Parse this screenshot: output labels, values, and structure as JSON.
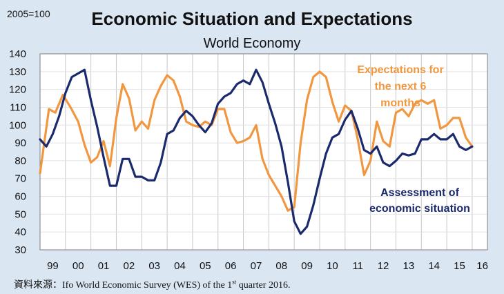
{
  "page": {
    "base_note": "2005=100",
    "source_prefix": "資料來源：",
    "source_text": "Ifo World Economic Survey (WES) of the 1",
    "source_sup": "st",
    "source_suffix": " quarter 2016."
  },
  "chart_data": {
    "type": "line",
    "title": "Economic Situation and Expectations",
    "subtitle": "World Economy",
    "xlabel": "",
    "ylabel": "",
    "ylim": [
      30,
      140
    ],
    "yticks": [
      30,
      40,
      50,
      60,
      70,
      80,
      90,
      100,
      110,
      120,
      130,
      140
    ],
    "xlim": [
      1998.5,
      2016.1
    ],
    "x_tick_labels": [
      {
        "label": "99",
        "x": 1999.0
      },
      {
        "label": "00",
        "x": 2000.0
      },
      {
        "label": "01",
        "x": 2001.0
      },
      {
        "label": "02",
        "x": 2002.0
      },
      {
        "label": "03",
        "x": 2003.0
      },
      {
        "label": "04",
        "x": 2004.0
      },
      {
        "label": "05",
        "x": 2005.0
      },
      {
        "label": "06",
        "x": 2006.0
      },
      {
        "label": "07",
        "x": 2007.0
      },
      {
        "label": "08",
        "x": 2008.0
      },
      {
        "label": "09",
        "x": 2009.0
      },
      {
        "label": "10",
        "x": 2010.0
      },
      {
        "label": "11",
        "x": 2011.0
      },
      {
        "label": "12",
        "x": 2012.0
      },
      {
        "label": "13",
        "x": 2013.0
      },
      {
        "label": "14",
        "x": 2014.0
      },
      {
        "label": "15",
        "x": 2015.0
      },
      {
        "label": "16",
        "x": 2015.9
      }
    ],
    "vertical_gridlines": [
      1999.5,
      2000.5,
      2001.5,
      2002.5,
      2003.5,
      2004.5,
      2005.5,
      2006.5,
      2007.5,
      2008.5,
      2009.5,
      2010.5,
      2011.5,
      2012.5,
      2013.5,
      2014.5,
      2015.5
    ],
    "grid": true,
    "series": [
      {
        "name": "Expectations for the next 6 months",
        "label_lines": [
          "Expectations for",
          "the next 6",
          "months"
        ],
        "color": "#f0973f",
        "points": [
          [
            1998.5,
            73
          ],
          [
            1998.85,
            109
          ],
          [
            1999.1,
            107
          ],
          [
            1999.4,
            117
          ],
          [
            1999.7,
            110
          ],
          [
            2000.0,
            102
          ],
          [
            2000.25,
            89
          ],
          [
            2000.5,
            79
          ],
          [
            2000.75,
            82
          ],
          [
            2001.0,
            91
          ],
          [
            2001.25,
            77
          ],
          [
            2001.5,
            104
          ],
          [
            2001.75,
            123
          ],
          [
            2002.0,
            115
          ],
          [
            2002.25,
            97
          ],
          [
            2002.5,
            102
          ],
          [
            2002.75,
            98
          ],
          [
            2003.0,
            114
          ],
          [
            2003.25,
            122
          ],
          [
            2003.5,
            128
          ],
          [
            2003.75,
            125
          ],
          [
            2004.0,
            116
          ],
          [
            2004.25,
            102
          ],
          [
            2004.5,
            100
          ],
          [
            2004.75,
            99
          ],
          [
            2005.0,
            102
          ],
          [
            2005.25,
            100
          ],
          [
            2005.5,
            109
          ],
          [
            2005.75,
            109
          ],
          [
            2006.0,
            96
          ],
          [
            2006.25,
            90
          ],
          [
            2006.5,
            91
          ],
          [
            2006.75,
            93
          ],
          [
            2007.0,
            100
          ],
          [
            2007.25,
            81
          ],
          [
            2007.5,
            72
          ],
          [
            2007.75,
            66
          ],
          [
            2008.0,
            60
          ],
          [
            2008.25,
            52
          ],
          [
            2008.5,
            54
          ],
          [
            2008.75,
            90
          ],
          [
            2009.0,
            114
          ],
          [
            2009.25,
            127
          ],
          [
            2009.5,
            130
          ],
          [
            2009.75,
            127
          ],
          [
            2010.0,
            113
          ],
          [
            2010.25,
            102
          ],
          [
            2010.5,
            111
          ],
          [
            2010.75,
            108
          ],
          [
            2011.0,
            92
          ],
          [
            2011.25,
            72
          ],
          [
            2011.5,
            80
          ],
          [
            2011.75,
            102
          ],
          [
            2012.0,
            91
          ],
          [
            2012.25,
            88
          ],
          [
            2012.5,
            107
          ],
          [
            2012.75,
            109
          ],
          [
            2013.0,
            105
          ],
          [
            2013.25,
            112
          ],
          [
            2013.5,
            114
          ],
          [
            2013.75,
            112
          ],
          [
            2014.0,
            114
          ],
          [
            2014.25,
            98
          ],
          [
            2014.5,
            100
          ],
          [
            2014.75,
            104
          ],
          [
            2015.0,
            104
          ],
          [
            2015.25,
            93
          ],
          [
            2015.5,
            88
          ]
        ]
      },
      {
        "name": "Assessment of economic situation",
        "label_lines": [
          "Assessment of",
          "economic situation"
        ],
        "color": "#1a2a6c",
        "points": [
          [
            1998.5,
            92
          ],
          [
            1998.75,
            88
          ],
          [
            1999.0,
            95
          ],
          [
            1999.25,
            105
          ],
          [
            1999.5,
            118
          ],
          [
            1999.75,
            127
          ],
          [
            2000.0,
            129
          ],
          [
            2000.25,
            131
          ],
          [
            2000.5,
            114
          ],
          [
            2000.75,
            99
          ],
          [
            2001.0,
            82
          ],
          [
            2001.25,
            66
          ],
          [
            2001.5,
            66
          ],
          [
            2001.75,
            81
          ],
          [
            2002.0,
            81
          ],
          [
            2002.25,
            71
          ],
          [
            2002.5,
            71
          ],
          [
            2002.75,
            69
          ],
          [
            2003.0,
            69
          ],
          [
            2003.25,
            79
          ],
          [
            2003.5,
            95
          ],
          [
            2003.75,
            97
          ],
          [
            2004.0,
            104
          ],
          [
            2004.25,
            108
          ],
          [
            2004.5,
            105
          ],
          [
            2004.75,
            100
          ],
          [
            2005.0,
            96
          ],
          [
            2005.25,
            101
          ],
          [
            2005.5,
            112
          ],
          [
            2005.75,
            116
          ],
          [
            2006.0,
            118
          ],
          [
            2006.25,
            123
          ],
          [
            2006.5,
            125
          ],
          [
            2006.75,
            123
          ],
          [
            2007.0,
            131
          ],
          [
            2007.25,
            124
          ],
          [
            2007.5,
            112
          ],
          [
            2007.75,
            101
          ],
          [
            2008.0,
            88
          ],
          [
            2008.25,
            68
          ],
          [
            2008.5,
            46
          ],
          [
            2008.75,
            39
          ],
          [
            2009.0,
            43
          ],
          [
            2009.25,
            55
          ],
          [
            2009.5,
            70
          ],
          [
            2009.75,
            84
          ],
          [
            2010.0,
            93
          ],
          [
            2010.25,
            95
          ],
          [
            2010.5,
            103
          ],
          [
            2010.75,
            108
          ],
          [
            2011.0,
            98
          ],
          [
            2011.25,
            86
          ],
          [
            2011.5,
            84
          ],
          [
            2011.75,
            88
          ],
          [
            2012.0,
            79
          ],
          [
            2012.25,
            77
          ],
          [
            2012.5,
            80
          ],
          [
            2012.75,
            84
          ],
          [
            2013.0,
            83
          ],
          [
            2013.25,
            84
          ],
          [
            2013.5,
            92
          ],
          [
            2013.75,
            92
          ],
          [
            2014.0,
            95
          ],
          [
            2014.25,
            92
          ],
          [
            2014.5,
            92
          ],
          [
            2014.75,
            95
          ],
          [
            2015.0,
            88
          ],
          [
            2015.25,
            86
          ],
          [
            2015.5,
            88
          ]
        ]
      }
    ]
  }
}
